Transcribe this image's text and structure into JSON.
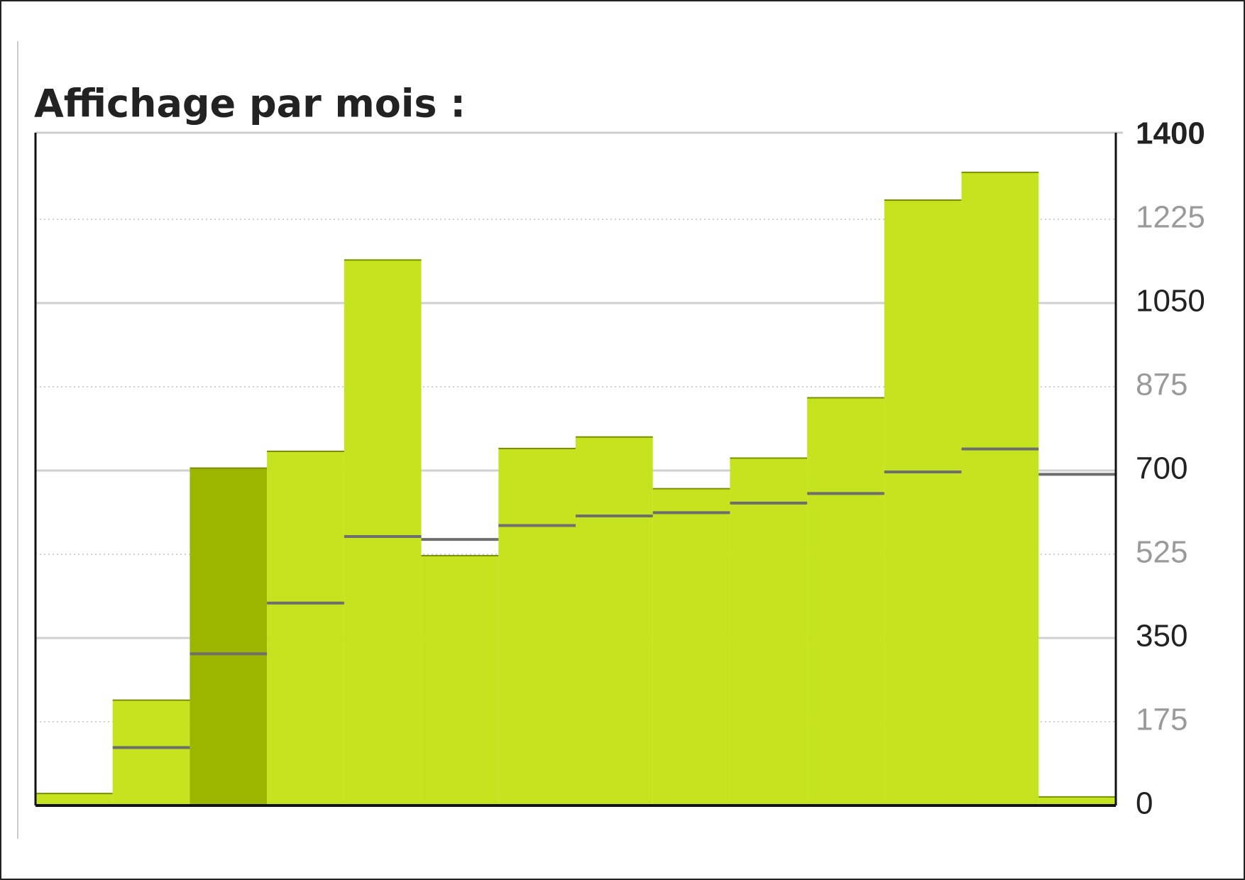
{
  "chart_data": {
    "type": "bar",
    "title": "Affichage par mois :",
    "categories": [
      null,
      null,
      null,
      null,
      null,
      null,
      null,
      null,
      null,
      null,
      null,
      null,
      null,
      null
    ],
    "series": [
      {
        "color": "#c5e31e",
        "highlight_color": "#9cb600",
        "highlight_index": 2,
        "values": [
          25,
          220,
          705,
          740,
          1140,
          522,
          746,
          770,
          662,
          726,
          852,
          1265,
          1323,
          18
        ]
      },
      {
        "color": "#6e6e6e",
        "values": [
          null,
          121,
          317,
          423,
          562,
          556,
          585,
          605,
          612,
          632,
          652,
          697,
          745,
          692
        ]
      }
    ],
    "ylim": [
      0,
      1400
    ],
    "yticks": [
      0,
      175,
      350,
      525,
      700,
      875,
      1050,
      1225,
      1400
    ],
    "grid": true,
    "y_axis_side": "right"
  }
}
